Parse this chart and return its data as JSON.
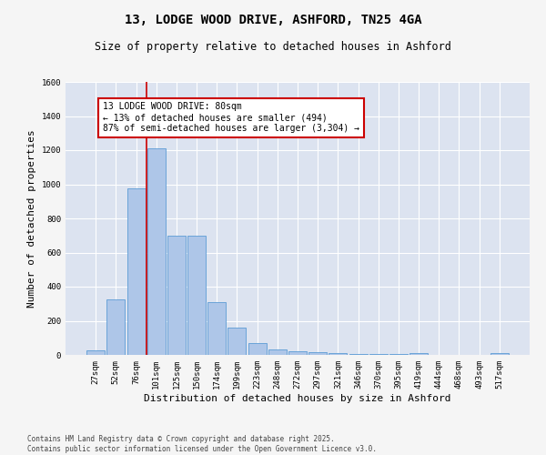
{
  "title_line1": "13, LODGE WOOD DRIVE, ASHFORD, TN25 4GA",
  "title_line2": "Size of property relative to detached houses in Ashford",
  "xlabel": "Distribution of detached houses by size in Ashford",
  "ylabel": "Number of detached properties",
  "categories": [
    "27sqm",
    "52sqm",
    "76sqm",
    "101sqm",
    "125sqm",
    "150sqm",
    "174sqm",
    "199sqm",
    "223sqm",
    "248sqm",
    "272sqm",
    "297sqm",
    "321sqm",
    "346sqm",
    "370sqm",
    "395sqm",
    "419sqm",
    "444sqm",
    "468sqm",
    "493sqm",
    "517sqm"
  ],
  "values": [
    25,
    325,
    975,
    1210,
    700,
    700,
    310,
    160,
    70,
    30,
    20,
    15,
    10,
    5,
    5,
    5,
    10,
    0,
    0,
    0,
    10
  ],
  "bar_color": "#aec6e8",
  "bar_edge_color": "#5b9bd5",
  "background_color": "#dce3f0",
  "grid_color": "#ffffff",
  "vline_x": 2.5,
  "vline_color": "#cc0000",
  "annotation_text": "13 LODGE WOOD DRIVE: 80sqm\n← 13% of detached houses are smaller (494)\n87% of semi-detached houses are larger (3,304) →",
  "annotation_box_color": "#cc0000",
  "ylim": [
    0,
    1600
  ],
  "yticks": [
    0,
    200,
    400,
    600,
    800,
    1000,
    1200,
    1400,
    1600
  ],
  "footer_line1": "Contains HM Land Registry data © Crown copyright and database right 2025.",
  "footer_line2": "Contains public sector information licensed under the Open Government Licence v3.0.",
  "title_fontsize": 10,
  "subtitle_fontsize": 8.5,
  "axis_label_fontsize": 8,
  "tick_fontsize": 6.5,
  "annotation_fontsize": 7,
  "footer_fontsize": 5.5,
  "fig_bg_color": "#f5f5f5"
}
